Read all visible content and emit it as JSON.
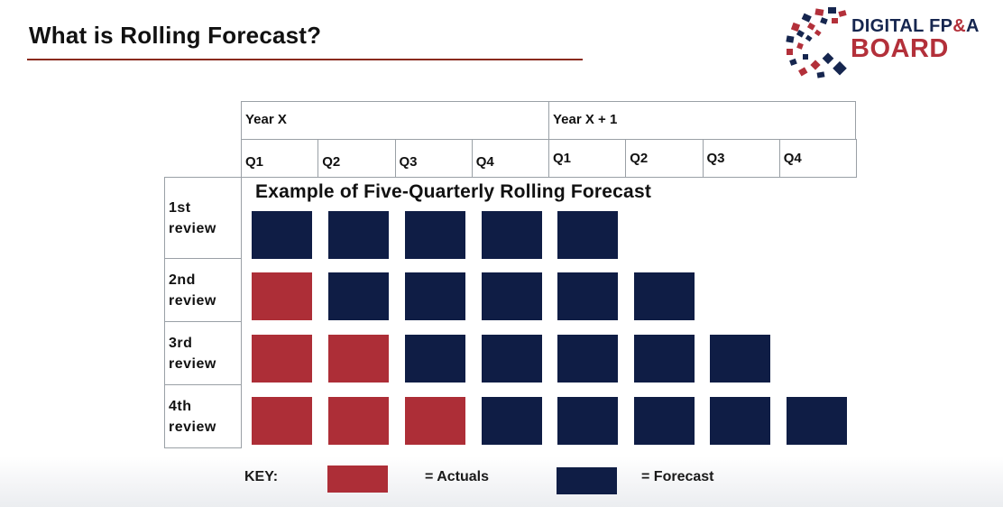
{
  "slide": {
    "title": "What is Rolling Forecast?"
  },
  "logo": {
    "line1_a": "DIGITAL FP",
    "line1_amp": "&",
    "line1_b": "A",
    "line2": "BOARD"
  },
  "colors": {
    "actuals": "#ad2e37",
    "forecast": "#0f1d45",
    "rule": "#8a2b1e"
  },
  "header": {
    "years": [
      "Year X",
      "Year X + 1"
    ],
    "quarters": [
      "Q1",
      "Q2",
      "Q3",
      "Q4",
      "Q1",
      "Q2",
      "Q3",
      "Q4"
    ]
  },
  "diagram": {
    "title": "Example of Five-Quarterly Rolling Forecast",
    "reviews": [
      {
        "label_line1": "1st",
        "label_line2": "review",
        "cells": [
          "forecast",
          "forecast",
          "forecast",
          "forecast",
          "forecast",
          "empty",
          "empty",
          "empty"
        ]
      },
      {
        "label_line1": "2nd",
        "label_line2": "review",
        "cells": [
          "actual",
          "forecast",
          "forecast",
          "forecast",
          "forecast",
          "forecast",
          "empty",
          "empty"
        ]
      },
      {
        "label_line1": "3rd",
        "label_line2": "review",
        "cells": [
          "actual",
          "actual",
          "forecast",
          "forecast",
          "forecast",
          "forecast",
          "forecast",
          "empty"
        ]
      },
      {
        "label_line1": "4th",
        "label_line2": "review",
        "cells": [
          "actual",
          "actual",
          "actual",
          "forecast",
          "forecast",
          "forecast",
          "forecast",
          "forecast"
        ]
      }
    ]
  },
  "key": {
    "label": "KEY:",
    "actuals": "= Actuals",
    "forecast": "= Forecast"
  }
}
